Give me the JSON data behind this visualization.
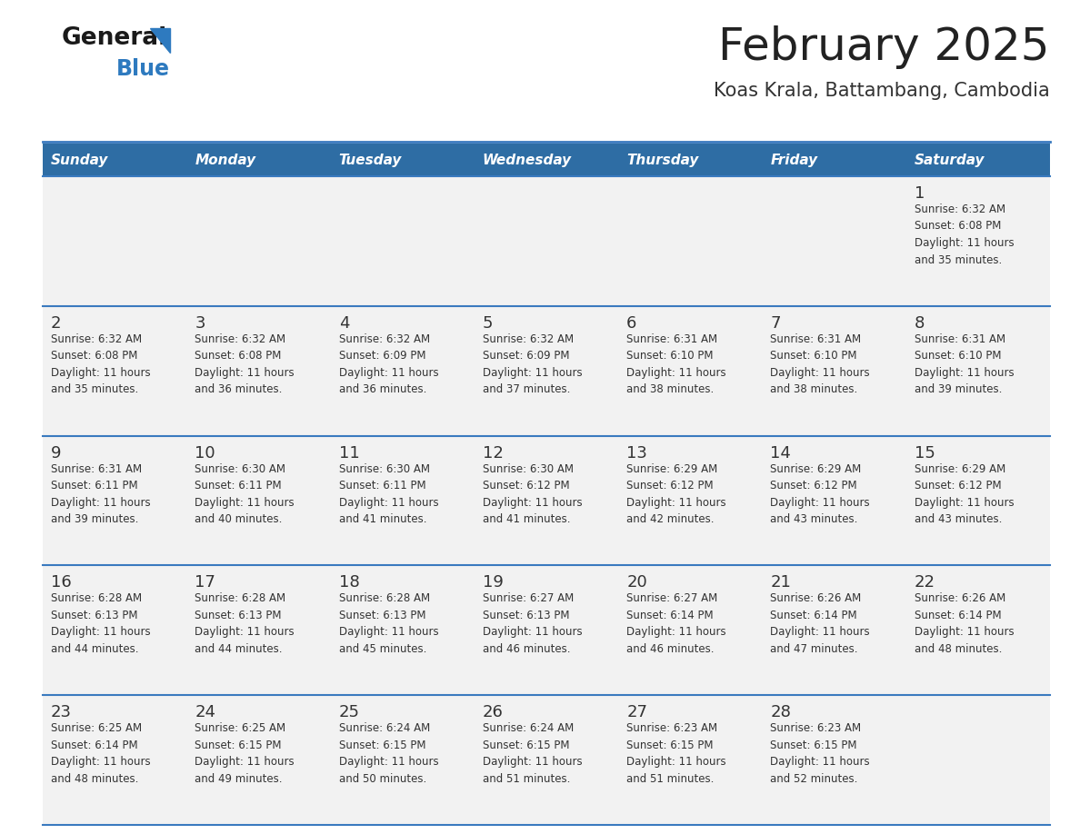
{
  "title": "February 2025",
  "subtitle": "Koas Krala, Battambang, Cambodia",
  "days_of_week": [
    "Sunday",
    "Monday",
    "Tuesday",
    "Wednesday",
    "Thursday",
    "Friday",
    "Saturday"
  ],
  "header_bg": "#2e6da4",
  "header_text_color": "#ffffff",
  "row_bg_light": "#f2f2f2",
  "row_bg_white": "#ffffff",
  "separator_color": "#3a7abf",
  "day_number_color": "#333333",
  "cell_text_color": "#333333",
  "title_color": "#222222",
  "subtitle_color": "#333333",
  "logo_general_color": "#1a1a1a",
  "logo_blue_color": "#2e7abf",
  "calendar_data": [
    [
      null,
      null,
      null,
      null,
      null,
      null,
      {
        "day": 1,
        "sunrise": "6:32 AM",
        "sunset": "6:08 PM",
        "daylight": "11 hours and 35 minutes."
      }
    ],
    [
      {
        "day": 2,
        "sunrise": "6:32 AM",
        "sunset": "6:08 PM",
        "daylight": "11 hours and 35 minutes."
      },
      {
        "day": 3,
        "sunrise": "6:32 AM",
        "sunset": "6:08 PM",
        "daylight": "11 hours and 36 minutes."
      },
      {
        "day": 4,
        "sunrise": "6:32 AM",
        "sunset": "6:09 PM",
        "daylight": "11 hours and 36 minutes."
      },
      {
        "day": 5,
        "sunrise": "6:32 AM",
        "sunset": "6:09 PM",
        "daylight": "11 hours and 37 minutes."
      },
      {
        "day": 6,
        "sunrise": "6:31 AM",
        "sunset": "6:10 PM",
        "daylight": "11 hours and 38 minutes."
      },
      {
        "day": 7,
        "sunrise": "6:31 AM",
        "sunset": "6:10 PM",
        "daylight": "11 hours and 38 minutes."
      },
      {
        "day": 8,
        "sunrise": "6:31 AM",
        "sunset": "6:10 PM",
        "daylight": "11 hours and 39 minutes."
      }
    ],
    [
      {
        "day": 9,
        "sunrise": "6:31 AM",
        "sunset": "6:11 PM",
        "daylight": "11 hours and 39 minutes."
      },
      {
        "day": 10,
        "sunrise": "6:30 AM",
        "sunset": "6:11 PM",
        "daylight": "11 hours and 40 minutes."
      },
      {
        "day": 11,
        "sunrise": "6:30 AM",
        "sunset": "6:11 PM",
        "daylight": "11 hours and 41 minutes."
      },
      {
        "day": 12,
        "sunrise": "6:30 AM",
        "sunset": "6:12 PM",
        "daylight": "11 hours and 41 minutes."
      },
      {
        "day": 13,
        "sunrise": "6:29 AM",
        "sunset": "6:12 PM",
        "daylight": "11 hours and 42 minutes."
      },
      {
        "day": 14,
        "sunrise": "6:29 AM",
        "sunset": "6:12 PM",
        "daylight": "11 hours and 43 minutes."
      },
      {
        "day": 15,
        "sunrise": "6:29 AM",
        "sunset": "6:12 PM",
        "daylight": "11 hours and 43 minutes."
      }
    ],
    [
      {
        "day": 16,
        "sunrise": "6:28 AM",
        "sunset": "6:13 PM",
        "daylight": "11 hours and 44 minutes."
      },
      {
        "day": 17,
        "sunrise": "6:28 AM",
        "sunset": "6:13 PM",
        "daylight": "11 hours and 44 minutes."
      },
      {
        "day": 18,
        "sunrise": "6:28 AM",
        "sunset": "6:13 PM",
        "daylight": "11 hours and 45 minutes."
      },
      {
        "day": 19,
        "sunrise": "6:27 AM",
        "sunset": "6:13 PM",
        "daylight": "11 hours and 46 minutes."
      },
      {
        "day": 20,
        "sunrise": "6:27 AM",
        "sunset": "6:14 PM",
        "daylight": "11 hours and 46 minutes."
      },
      {
        "day": 21,
        "sunrise": "6:26 AM",
        "sunset": "6:14 PM",
        "daylight": "11 hours and 47 minutes."
      },
      {
        "day": 22,
        "sunrise": "6:26 AM",
        "sunset": "6:14 PM",
        "daylight": "11 hours and 48 minutes."
      }
    ],
    [
      {
        "day": 23,
        "sunrise": "6:25 AM",
        "sunset": "6:14 PM",
        "daylight": "11 hours and 48 minutes."
      },
      {
        "day": 24,
        "sunrise": "6:25 AM",
        "sunset": "6:15 PM",
        "daylight": "11 hours and 49 minutes."
      },
      {
        "day": 25,
        "sunrise": "6:24 AM",
        "sunset": "6:15 PM",
        "daylight": "11 hours and 50 minutes."
      },
      {
        "day": 26,
        "sunrise": "6:24 AM",
        "sunset": "6:15 PM",
        "daylight": "11 hours and 51 minutes."
      },
      {
        "day": 27,
        "sunrise": "6:23 AM",
        "sunset": "6:15 PM",
        "daylight": "11 hours and 51 minutes."
      },
      {
        "day": 28,
        "sunrise": "6:23 AM",
        "sunset": "6:15 PM",
        "daylight": "11 hours and 52 minutes."
      },
      null
    ]
  ]
}
